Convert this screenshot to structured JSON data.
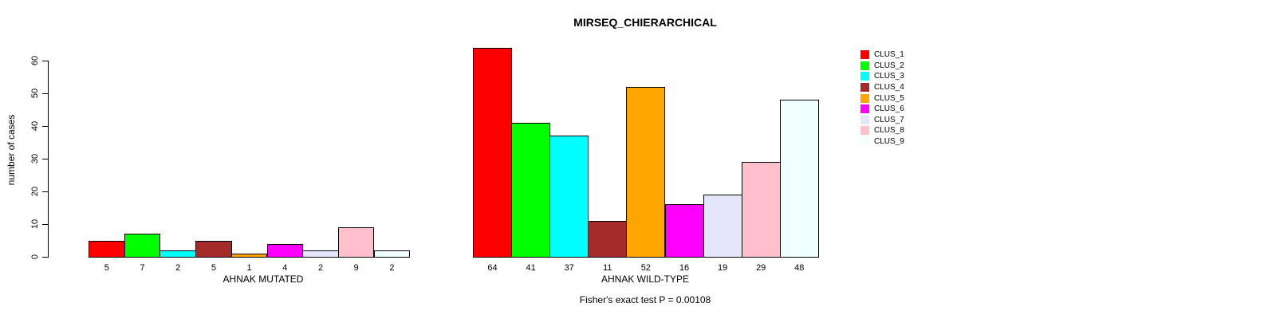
{
  "chart_data": {
    "type": "bar",
    "title": "MIRSEQ_CHIERARCHICAL",
    "ylabel": "number of cases",
    "ylim": [
      0,
      60
    ],
    "yticks": [
      0,
      10,
      20,
      30,
      40,
      50,
      60
    ],
    "grid": false,
    "legend_position": "right",
    "bar_value_labels_shown": true,
    "categories": [
      "AHNAK MUTATED",
      "AHNAK WILD-TYPE"
    ],
    "series": [
      {
        "name": "CLUS_1",
        "color": "#FF0000",
        "values": [
          5,
          64
        ]
      },
      {
        "name": "CLUS_2",
        "color": "#00FF00",
        "values": [
          7,
          41
        ]
      },
      {
        "name": "CLUS_3",
        "color": "#00FFFF",
        "values": [
          2,
          37
        ]
      },
      {
        "name": "CLUS_4",
        "color": "#A52A2A",
        "values": [
          5,
          11
        ]
      },
      {
        "name": "CLUS_5",
        "color": "#FFA500",
        "values": [
          1,
          52
        ]
      },
      {
        "name": "CLUS_6",
        "color": "#FF00FF",
        "values": [
          4,
          16
        ]
      },
      {
        "name": "CLUS_7",
        "color": "#E6E6FA",
        "values": [
          2,
          19
        ]
      },
      {
        "name": "CLUS_8",
        "color": "#FFC0CB",
        "values": [
          9,
          29
        ]
      },
      {
        "name": "CLUS_9",
        "color": "#F0FFFF",
        "values": [
          2,
          48
        ]
      }
    ],
    "footnote": "Fisher's exact test P = 0.00108"
  }
}
